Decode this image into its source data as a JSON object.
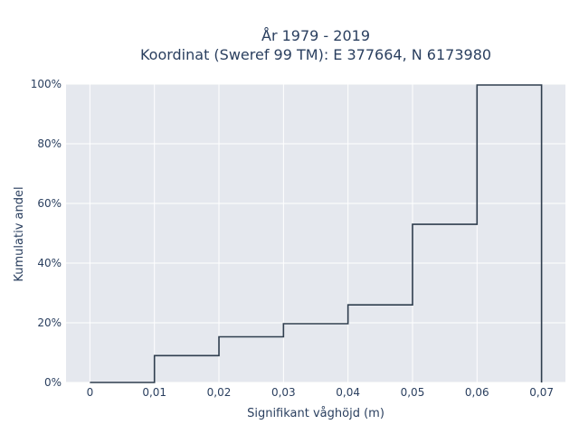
{
  "chart_data": {
    "type": "line",
    "line_shape": "step",
    "title_lines": [
      "År 1979 - 2019",
      "Koordinat (Sweref 99 TM): E 377664, N 6173980"
    ],
    "xlabel": "Signifikant våghöjd (m)",
    "ylabel": "Kumulativ andel",
    "x_ticks": [
      0,
      0.01,
      0.02,
      0.03,
      0.04,
      0.05,
      0.06,
      0.07
    ],
    "x_tick_labels": [
      "0",
      "0,01",
      "0,02",
      "0,03",
      "0,04",
      "0,05",
      "0,06",
      "0,07"
    ],
    "y_ticks": [
      0,
      20,
      40,
      60,
      80,
      100
    ],
    "y_tick_labels": [
      "0%",
      "20%",
      "40%",
      "60%",
      "80%",
      "100%"
    ],
    "xlim": [
      -0.0037,
      0.0737
    ],
    "ylim": [
      0,
      100
    ],
    "grid": true,
    "series": [
      {
        "color": "#2f3e4e",
        "x": [
          0,
          0.01,
          0.01,
          0.02,
          0.02,
          0.03,
          0.03,
          0.04,
          0.04,
          0.05,
          0.05,
          0.06,
          0.06,
          0.07,
          0.07
        ],
        "y": [
          0,
          0,
          9,
          9,
          15.3,
          15.3,
          19.7,
          19.7,
          26,
          26,
          53,
          53,
          99.7,
          99.7,
          0
        ]
      }
    ],
    "background_color": "#e5e8ee",
    "grid_color": "#ffffff"
  }
}
